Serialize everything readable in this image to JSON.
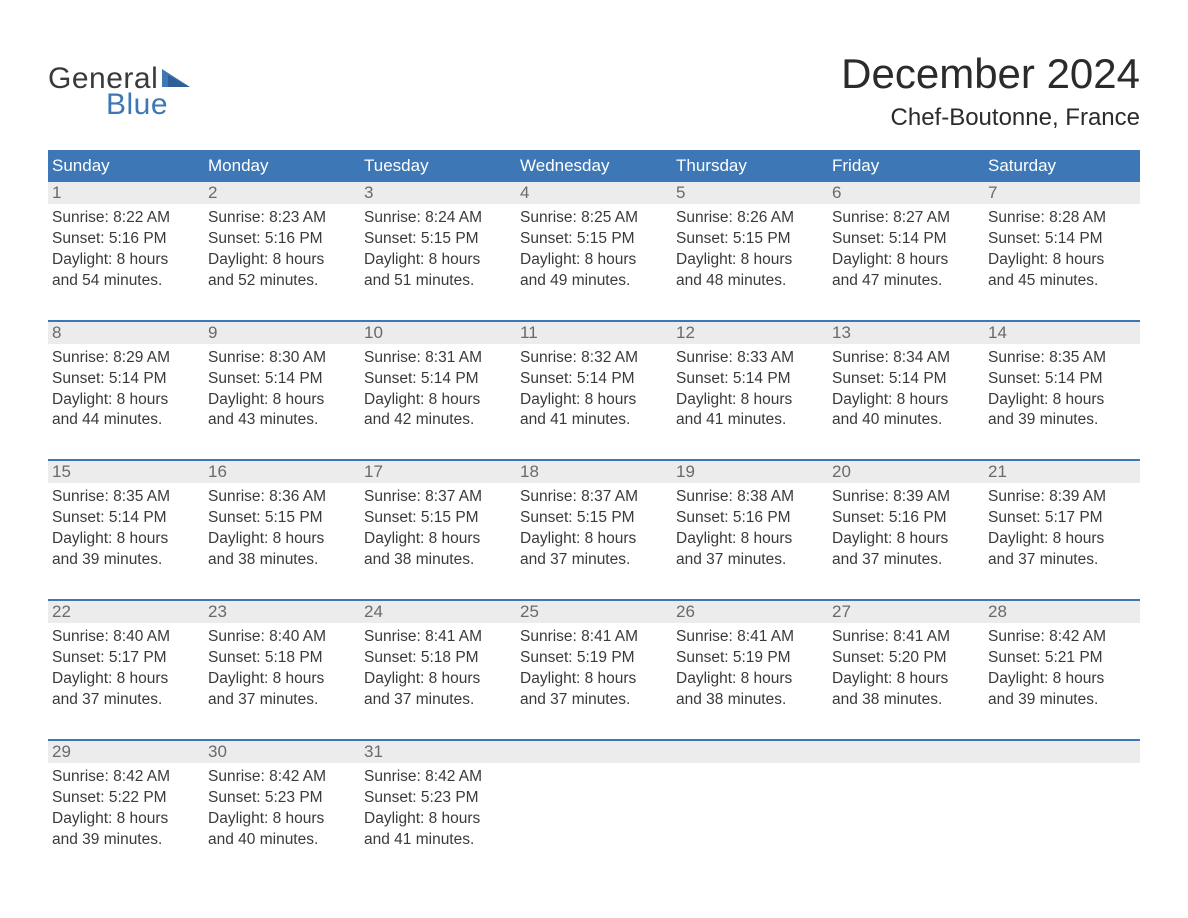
{
  "logo": {
    "top": "General",
    "bottom": "Blue",
    "tri_color": "#3d77b6"
  },
  "header": {
    "title": "December 2024",
    "location": "Chef-Boutonne, France"
  },
  "colors": {
    "header_bg": "#3d77b6",
    "header_text": "#ffffff",
    "daynum_bg": "#ececec",
    "daynum_text": "#6a6a6a",
    "body_text": "#3a3a3a",
    "page_bg": "#ffffff",
    "row_border": "#3d77b6"
  },
  "typography": {
    "title_fontsize": 42,
    "location_fontsize": 24,
    "header_fontsize": 17,
    "daynum_fontsize": 17,
    "cell_fontsize": 15.5,
    "font_family": "Arial"
  },
  "calendar": {
    "columns": [
      "Sunday",
      "Monday",
      "Tuesday",
      "Wednesday",
      "Thursday",
      "Friday",
      "Saturday"
    ],
    "weeks": [
      [
        {
          "day": "1",
          "sunrise": "Sunrise: 8:22 AM",
          "sunset": "Sunset: 5:16 PM",
          "dl1": "Daylight: 8 hours",
          "dl2": "and 54 minutes."
        },
        {
          "day": "2",
          "sunrise": "Sunrise: 8:23 AM",
          "sunset": "Sunset: 5:16 PM",
          "dl1": "Daylight: 8 hours",
          "dl2": "and 52 minutes."
        },
        {
          "day": "3",
          "sunrise": "Sunrise: 8:24 AM",
          "sunset": "Sunset: 5:15 PM",
          "dl1": "Daylight: 8 hours",
          "dl2": "and 51 minutes."
        },
        {
          "day": "4",
          "sunrise": "Sunrise: 8:25 AM",
          "sunset": "Sunset: 5:15 PM",
          "dl1": "Daylight: 8 hours",
          "dl2": "and 49 minutes."
        },
        {
          "day": "5",
          "sunrise": "Sunrise: 8:26 AM",
          "sunset": "Sunset: 5:15 PM",
          "dl1": "Daylight: 8 hours",
          "dl2": "and 48 minutes."
        },
        {
          "day": "6",
          "sunrise": "Sunrise: 8:27 AM",
          "sunset": "Sunset: 5:14 PM",
          "dl1": "Daylight: 8 hours",
          "dl2": "and 47 minutes."
        },
        {
          "day": "7",
          "sunrise": "Sunrise: 8:28 AM",
          "sunset": "Sunset: 5:14 PM",
          "dl1": "Daylight: 8 hours",
          "dl2": "and 45 minutes."
        }
      ],
      [
        {
          "day": "8",
          "sunrise": "Sunrise: 8:29 AM",
          "sunset": "Sunset: 5:14 PM",
          "dl1": "Daylight: 8 hours",
          "dl2": "and 44 minutes."
        },
        {
          "day": "9",
          "sunrise": "Sunrise: 8:30 AM",
          "sunset": "Sunset: 5:14 PM",
          "dl1": "Daylight: 8 hours",
          "dl2": "and 43 minutes."
        },
        {
          "day": "10",
          "sunrise": "Sunrise: 8:31 AM",
          "sunset": "Sunset: 5:14 PM",
          "dl1": "Daylight: 8 hours",
          "dl2": "and 42 minutes."
        },
        {
          "day": "11",
          "sunrise": "Sunrise: 8:32 AM",
          "sunset": "Sunset: 5:14 PM",
          "dl1": "Daylight: 8 hours",
          "dl2": "and 41 minutes."
        },
        {
          "day": "12",
          "sunrise": "Sunrise: 8:33 AM",
          "sunset": "Sunset: 5:14 PM",
          "dl1": "Daylight: 8 hours",
          "dl2": "and 41 minutes."
        },
        {
          "day": "13",
          "sunrise": "Sunrise: 8:34 AM",
          "sunset": "Sunset: 5:14 PM",
          "dl1": "Daylight: 8 hours",
          "dl2": "and 40 minutes."
        },
        {
          "day": "14",
          "sunrise": "Sunrise: 8:35 AM",
          "sunset": "Sunset: 5:14 PM",
          "dl1": "Daylight: 8 hours",
          "dl2": "and 39 minutes."
        }
      ],
      [
        {
          "day": "15",
          "sunrise": "Sunrise: 8:35 AM",
          "sunset": "Sunset: 5:14 PM",
          "dl1": "Daylight: 8 hours",
          "dl2": "and 39 minutes."
        },
        {
          "day": "16",
          "sunrise": "Sunrise: 8:36 AM",
          "sunset": "Sunset: 5:15 PM",
          "dl1": "Daylight: 8 hours",
          "dl2": "and 38 minutes."
        },
        {
          "day": "17",
          "sunrise": "Sunrise: 8:37 AM",
          "sunset": "Sunset: 5:15 PM",
          "dl1": "Daylight: 8 hours",
          "dl2": "and 38 minutes."
        },
        {
          "day": "18",
          "sunrise": "Sunrise: 8:37 AM",
          "sunset": "Sunset: 5:15 PM",
          "dl1": "Daylight: 8 hours",
          "dl2": "and 37 minutes."
        },
        {
          "day": "19",
          "sunrise": "Sunrise: 8:38 AM",
          "sunset": "Sunset: 5:16 PM",
          "dl1": "Daylight: 8 hours",
          "dl2": "and 37 minutes."
        },
        {
          "day": "20",
          "sunrise": "Sunrise: 8:39 AM",
          "sunset": "Sunset: 5:16 PM",
          "dl1": "Daylight: 8 hours",
          "dl2": "and 37 minutes."
        },
        {
          "day": "21",
          "sunrise": "Sunrise: 8:39 AM",
          "sunset": "Sunset: 5:17 PM",
          "dl1": "Daylight: 8 hours",
          "dl2": "and 37 minutes."
        }
      ],
      [
        {
          "day": "22",
          "sunrise": "Sunrise: 8:40 AM",
          "sunset": "Sunset: 5:17 PM",
          "dl1": "Daylight: 8 hours",
          "dl2": "and 37 minutes."
        },
        {
          "day": "23",
          "sunrise": "Sunrise: 8:40 AM",
          "sunset": "Sunset: 5:18 PM",
          "dl1": "Daylight: 8 hours",
          "dl2": "and 37 minutes."
        },
        {
          "day": "24",
          "sunrise": "Sunrise: 8:41 AM",
          "sunset": "Sunset: 5:18 PM",
          "dl1": "Daylight: 8 hours",
          "dl2": "and 37 minutes."
        },
        {
          "day": "25",
          "sunrise": "Sunrise: 8:41 AM",
          "sunset": "Sunset: 5:19 PM",
          "dl1": "Daylight: 8 hours",
          "dl2": "and 37 minutes."
        },
        {
          "day": "26",
          "sunrise": "Sunrise: 8:41 AM",
          "sunset": "Sunset: 5:19 PM",
          "dl1": "Daylight: 8 hours",
          "dl2": "and 38 minutes."
        },
        {
          "day": "27",
          "sunrise": "Sunrise: 8:41 AM",
          "sunset": "Sunset: 5:20 PM",
          "dl1": "Daylight: 8 hours",
          "dl2": "and 38 minutes."
        },
        {
          "day": "28",
          "sunrise": "Sunrise: 8:42 AM",
          "sunset": "Sunset: 5:21 PM",
          "dl1": "Daylight: 8 hours",
          "dl2": "and 39 minutes."
        }
      ],
      [
        {
          "day": "29",
          "sunrise": "Sunrise: 8:42 AM",
          "sunset": "Sunset: 5:22 PM",
          "dl1": "Daylight: 8 hours",
          "dl2": "and 39 minutes."
        },
        {
          "day": "30",
          "sunrise": "Sunrise: 8:42 AM",
          "sunset": "Sunset: 5:23 PM",
          "dl1": "Daylight: 8 hours",
          "dl2": "and 40 minutes."
        },
        {
          "day": "31",
          "sunrise": "Sunrise: 8:42 AM",
          "sunset": "Sunset: 5:23 PM",
          "dl1": "Daylight: 8 hours",
          "dl2": "and 41 minutes."
        },
        null,
        null,
        null,
        null
      ]
    ]
  }
}
